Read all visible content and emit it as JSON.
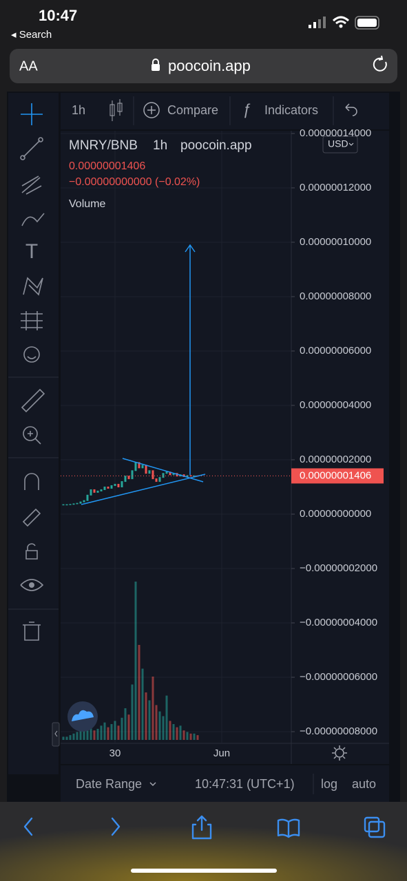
{
  "status": {
    "time": "10:47",
    "back": "◂ Search"
  },
  "address": {
    "text_size": "AA",
    "url": "poocoin.app"
  },
  "toolbar": {
    "interval": "1h",
    "compare": "Compare",
    "indicators": "Indicators"
  },
  "footer": {
    "date_range": "Date Range",
    "clock": "10:47:31 (UTC+1)",
    "log": "log",
    "auto": "auto"
  },
  "chart_data": {
    "type": "candlestick",
    "title": "MNRY/BNB",
    "interval": "1h",
    "source": "poocoin.app",
    "currency": "USD",
    "price_label": "0.00000001406",
    "change_label": "−0.00000000000 (−0.02%)",
    "volume_label": "Volume",
    "last_price": 1.406e-08,
    "x_labels": [
      "30",
      "Jun"
    ],
    "ylim": [
      -8.43e-08,
      1.41e-07
    ],
    "yticks": [
      {
        "value": 1.4e-07,
        "label": "0.00000014000"
      },
      {
        "value": 1.2e-07,
        "label": "0.00000012000"
      },
      {
        "value": 1e-07,
        "label": "0.00000010000"
      },
      {
        "value": 8e-08,
        "label": "0.00000008000"
      },
      {
        "value": 6e-08,
        "label": "0.00000006000"
      },
      {
        "value": 4e-08,
        "label": "0.00000004000"
      },
      {
        "value": 2e-08,
        "label": "0.00000002000"
      },
      {
        "value": 0,
        "label": "0.00000000000"
      },
      {
        "value": -2e-08,
        "label": "−0.00000002000"
      },
      {
        "value": -4e-08,
        "label": "−0.00000004000"
      },
      {
        "value": -6e-08,
        "label": "−0.00000006000"
      },
      {
        "value": -8e-08,
        "label": "−0.00000008000"
      }
    ],
    "values": [
      3.5e-09,
      3.5e-09,
      3.6e-09,
      3.8e-09,
      4e-09,
      4.5e-09,
      5e-09,
      7e-09,
      9e-09,
      8e-09,
      8.5e-09,
      9e-09,
      1e-08,
      9.5e-09,
      1.05e-08,
      1.1e-08,
      1e-08,
      1.2e-08,
      1.4e-08,
      1.3e-08,
      1.6e-08,
      1.9e-08,
      1.7e-08,
      1.8e-08,
      1.5e-08,
      1.6e-08,
      1.3e-08,
      1.2e-08,
      1.35e-08,
      1.5e-08,
      1.55e-08,
      1.45e-08,
      1.5e-08,
      1.4e-08,
      1.45e-08,
      1.38e-08,
      1.42e-08,
      1.4e-08,
      1.41e-08,
      1.406e-08
    ],
    "volume": [
      2,
      2,
      3,
      4,
      5,
      8,
      10,
      12,
      8,
      6,
      7,
      9,
      11,
      8,
      10,
      12,
      9,
      14,
      20,
      16,
      35,
      100,
      60,
      45,
      30,
      25,
      40,
      22,
      18,
      15,
      28,
      12,
      10,
      8,
      9,
      6,
      5,
      4,
      4,
      3
    ],
    "up_color": "#26a69a",
    "down_color": "#ef5350",
    "line_color": "#2196f3"
  }
}
